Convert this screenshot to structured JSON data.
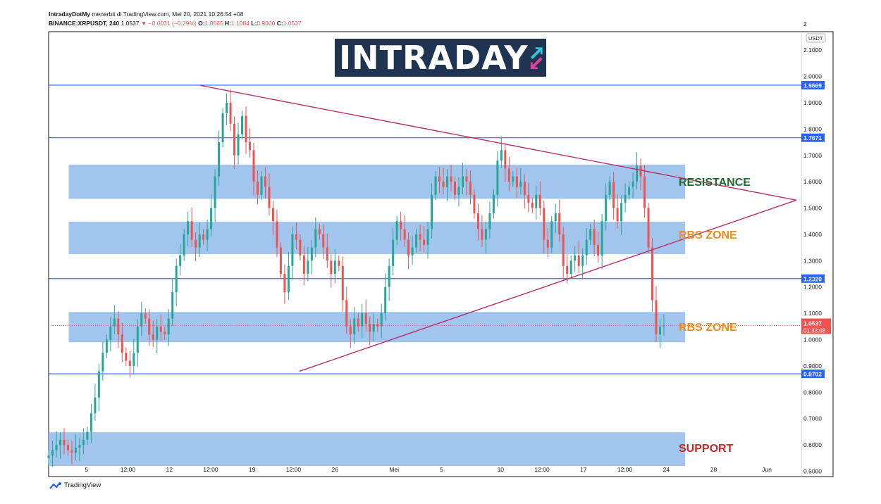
{
  "header": {
    "line1_author": "IntradayDotMy",
    "line1_rest": "menerbit di TradingView.com, Mei 20, 2021 10:26:54 +08",
    "symbol": "BINANCE:XRPUSDT, 240",
    "last": "1.0537",
    "change": "▼ −0.0031 (−0.29%)",
    "o_label": "O:",
    "o": "1.0565",
    "h_label": "H:",
    "h": "1.1084",
    "l_label": "L:",
    "l": "0.9000",
    "c_label": "C:",
    "c": "1.0537"
  },
  "logo": {
    "text": "INTRADAY"
  },
  "footer": {
    "brand": "TradingView"
  },
  "colors": {
    "up": "#26a69a",
    "down": "#ef5350",
    "zone": "#9dc2ec",
    "hline": "#2962ff",
    "trend": "#b7306c",
    "resistance": "#1e6b2e",
    "rbs": "#f08c1d",
    "support": "#c62828"
  },
  "chart_data": {
    "type": "candlestick",
    "currency": "USDT",
    "ylim": [
      0.48,
      2.17
    ],
    "y_ticks": [
      "2.1000",
      "2.0000",
      "1.9000",
      "1.8000",
      "1.7000",
      "1.6000",
      "1.5000",
      "1.4000",
      "1.3000",
      "1.2000",
      "1.1000",
      "1.0000",
      "0.9000",
      "0.8000",
      "0.7000",
      "0.6000",
      "0.5000"
    ],
    "y_tick_values": [
      2.1,
      2.0,
      1.9,
      1.8,
      1.7,
      1.6,
      1.5,
      1.4,
      1.3,
      1.2,
      1.1,
      1.0,
      0.9,
      0.8,
      0.7,
      0.6,
      0.5
    ],
    "top_partial_tick": "2",
    "x_ticks": [
      "5",
      "12:00",
      "12",
      "12:00",
      "19",
      "12:00",
      "26",
      "Mei",
      "5",
      "10",
      "12:00",
      "17",
      "12:00",
      "24",
      "28",
      "Jun"
    ],
    "x_tick_days": [
      5,
      8.5,
      12,
      15.5,
      19,
      22.5,
      26,
      31,
      35,
      40,
      43.5,
      47,
      50.5,
      54,
      58,
      62.5
    ],
    "x_range_days": [
      1.8,
      65
    ],
    "price_levels": [
      {
        "label": "1.9669",
        "value": 1.9669
      },
      {
        "label": "1.7671",
        "value": 1.7671
      },
      {
        "label": "1.2320",
        "value": 1.232
      },
      {
        "label": "0.8702",
        "value": 0.8702
      }
    ],
    "current_price": {
      "label": "1.0537",
      "countdown": "01:33:08",
      "value": 1.0537
    },
    "zones": [
      {
        "name": "RESISTANCE",
        "top": 1.665,
        "bottom": 1.535,
        "colorKey": "resistance",
        "label_value": 1.6
      },
      {
        "name": "RBS ZONE",
        "top": 1.448,
        "bottom": 1.325,
        "colorKey": "rbs",
        "label_value": 1.4
      },
      {
        "name": "RBS ZONE",
        "top": 1.105,
        "bottom": 0.99,
        "colorKey": "rbs",
        "label_value": 1.05
      },
      {
        "name": "SUPPORT",
        "top": 0.648,
        "bottom": 0.52,
        "colorKey": "support",
        "label_value": 0.59
      }
    ],
    "zone_day_range": [
      3.5,
      55.6
    ],
    "trendlines": [
      {
        "from": [
          14.6,
          1.966
        ],
        "to": [
          65,
          1.53
        ]
      },
      {
        "from": [
          23,
          0.88
        ],
        "to": [
          65,
          1.53
        ]
      }
    ],
    "series_closes": [
      0.56,
      0.58,
      0.6,
      0.62,
      0.6,
      0.58,
      0.57,
      0.59,
      0.6,
      0.62,
      0.65,
      0.72,
      0.78,
      0.88,
      0.95,
      1.0,
      1.05,
      1.08,
      1.02,
      0.95,
      0.92,
      0.9,
      0.95,
      1.05,
      1.1,
      1.08,
      1.02,
      1.0,
      1.05,
      1.03,
      1.02,
      1.08,
      1.18,
      1.28,
      1.32,
      1.4,
      1.45,
      1.38,
      1.35,
      1.4,
      1.38,
      1.42,
      1.5,
      1.62,
      1.75,
      1.86,
      1.9,
      1.82,
      1.7,
      1.78,
      1.85,
      1.75,
      1.72,
      1.6,
      1.55,
      1.62,
      1.58,
      1.5,
      1.45,
      1.35,
      1.25,
      1.18,
      1.28,
      1.4,
      1.38,
      1.32,
      1.25,
      1.3,
      1.35,
      1.42,
      1.4,
      1.35,
      1.3,
      1.25,
      1.3,
      1.28,
      1.15,
      1.05,
      1.02,
      1.08,
      1.05,
      1.1,
      1.06,
      1.03,
      1.06,
      1.05,
      1.1,
      1.2,
      1.28,
      1.38,
      1.45,
      1.42,
      1.38,
      1.32,
      1.35,
      1.4,
      1.38,
      1.36,
      1.42,
      1.55,
      1.62,
      1.6,
      1.58,
      1.62,
      1.6,
      1.55,
      1.58,
      1.62,
      1.6,
      1.55,
      1.48,
      1.42,
      1.38,
      1.42,
      1.48,
      1.55,
      1.68,
      1.72,
      1.65,
      1.6,
      1.62,
      1.58,
      1.6,
      1.55,
      1.52,
      1.5,
      1.55,
      1.5,
      1.38,
      1.35,
      1.45,
      1.48,
      1.4,
      1.28,
      1.25,
      1.3,
      1.32,
      1.28,
      1.32,
      1.38,
      1.42,
      1.36,
      1.32,
      1.45,
      1.55,
      1.6,
      1.5,
      1.45,
      1.52,
      1.55,
      1.58,
      1.6,
      1.66,
      1.62,
      1.5,
      1.35,
      1.15,
      1.02,
      1.05,
      1.0537
    ]
  }
}
